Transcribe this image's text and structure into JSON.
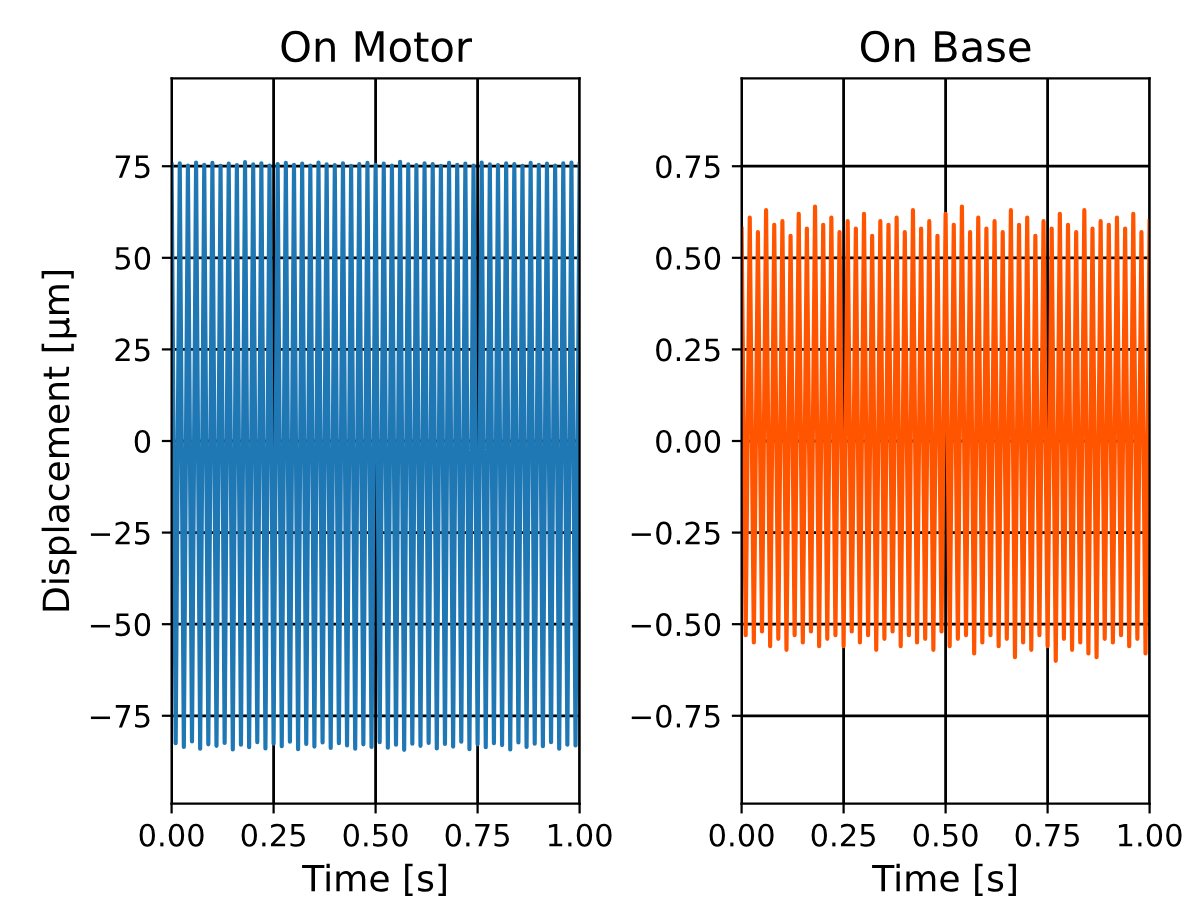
{
  "chart_data": [
    {
      "type": "line",
      "title": "On Motor",
      "xlabel": "Time [s]",
      "ylabel": "Displacement [μm]",
      "xlim": [
        0,
        1
      ],
      "xticks": [
        {
          "value": 0,
          "label": "0.00"
        },
        {
          "value": 0.25,
          "label": "0.25"
        },
        {
          "value": 0.5,
          "label": "0.50"
        },
        {
          "value": 0.75,
          "label": "0.75"
        },
        {
          "value": 1,
          "label": "1.00"
        }
      ],
      "ylim": [
        -99,
        99
      ],
      "yticks": [
        {
          "value": -75,
          "label": "−75"
        },
        {
          "value": -50,
          "label": "−50"
        },
        {
          "value": -25,
          "label": "−25"
        },
        0,
        25,
        50,
        75
      ],
      "grid": true,
      "legend": false,
      "x": [
        0,
        0.01,
        0.02,
        0.03,
        0.04,
        0.05,
        0.06,
        0.07,
        0.08,
        0.09,
        0.1,
        0.11,
        0.12,
        0.13,
        0.14,
        0.15,
        0.16,
        0.17,
        0.18,
        0.19,
        0.2,
        0.21,
        0.22,
        0.23,
        0.24,
        0.25,
        0.26,
        0.27,
        0.28,
        0.29,
        0.3,
        0.31,
        0.32,
        0.33,
        0.34,
        0.35,
        0.36,
        0.37,
        0.38,
        0.39,
        0.4,
        0.41,
        0.42,
        0.43,
        0.44,
        0.45,
        0.46,
        0.47,
        0.48,
        0.49,
        0.5,
        0.51,
        0.52,
        0.53,
        0.54,
        0.55,
        0.56,
        0.57,
        0.58,
        0.59,
        0.6,
        0.61,
        0.62,
        0.63,
        0.64,
        0.65,
        0.66,
        0.67,
        0.68,
        0.69,
        0.7,
        0.71,
        0.72,
        0.73,
        0.74,
        0.75,
        0.76,
        0.77,
        0.78,
        0.79,
        0.8,
        0.81,
        0.82,
        0.83,
        0.84,
        0.85,
        0.86,
        0.87,
        0.88,
        0.89,
        0.9,
        0.91,
        0.92,
        0.93,
        0.94,
        0.95,
        0.96,
        0.97,
        0.98,
        0.99,
        1
      ],
      "series": [
        {
          "color": "#1f77b4",
          "values": [
            75.5,
            -82.5,
            75.8,
            -83.5,
            75.2,
            -82.0,
            76.0,
            -84.0,
            75.4,
            -82.8,
            75.9,
            -83.2,
            75.1,
            -82.4,
            75.7,
            -84.2,
            75.3,
            -82.9,
            76.1,
            -83.6,
            75.5,
            -82.2,
            75.8,
            -83.9,
            75.2,
            -82.6,
            75.6,
            -83.3,
            75.9,
            -82.1,
            75.4,
            -84.1,
            75.7,
            -82.7,
            75.2,
            -83.4,
            76.0,
            -82.3,
            75.5,
            -83.8,
            75.3,
            -82.5,
            75.8,
            -83.1,
            75.1,
            -84.0,
            75.6,
            -82.8,
            75.9,
            -83.5,
            75.4,
            -82.2,
            75.7,
            -83.7,
            75.2,
            -82.9,
            76.2,
            -84.3,
            75.5,
            -82.6,
            75.3,
            -83.2,
            75.8,
            -82.4,
            75.6,
            -83.9,
            75.1,
            -82.7,
            75.9,
            -83.4,
            75.4,
            -82.1,
            75.7,
            -84.1,
            75.2,
            -82.8,
            76.0,
            -83.6,
            75.5,
            -82.5,
            75.3,
            -83.0,
            75.8,
            -84.2,
            75.6,
            -82.3,
            75.1,
            -83.5,
            75.9,
            -82.6,
            75.4,
            -83.3,
            75.7,
            -82.2,
            75.2,
            -84.0,
            75.8,
            -82.9,
            76.0,
            -83.1,
            75.6
          ]
        }
      ]
    },
    {
      "type": "line",
      "title": "On Base",
      "xlabel": "Time [s]",
      "xlim": [
        0,
        1
      ],
      "xticks": [
        {
          "value": 0,
          "label": "0.00"
        },
        {
          "value": 0.25,
          "label": "0.25"
        },
        {
          "value": 0.5,
          "label": "0.50"
        },
        {
          "value": 0.75,
          "label": "0.75"
        },
        {
          "value": 1,
          "label": "1.00"
        }
      ],
      "ylim": [
        -0.99,
        0.99
      ],
      "yticks": [
        {
          "value": -0.75,
          "label": "−0.75"
        },
        {
          "value": -0.5,
          "label": "−0.50"
        },
        {
          "value": -0.25,
          "label": "−0.25"
        },
        {
          "value": 0,
          "label": "0.00"
        },
        {
          "value": 0.25,
          "label": "0.25"
        },
        {
          "value": 0.5,
          "label": "0.50"
        },
        {
          "value": 0.75,
          "label": "0.75"
        }
      ],
      "grid": true,
      "legend": false,
      "x": [
        0,
        0.01,
        0.02,
        0.03,
        0.04,
        0.05,
        0.06,
        0.07,
        0.08,
        0.09,
        0.1,
        0.11,
        0.12,
        0.13,
        0.14,
        0.15,
        0.16,
        0.17,
        0.18,
        0.19,
        0.2,
        0.21,
        0.22,
        0.23,
        0.24,
        0.25,
        0.26,
        0.27,
        0.28,
        0.29,
        0.3,
        0.31,
        0.32,
        0.33,
        0.34,
        0.35,
        0.36,
        0.37,
        0.38,
        0.39,
        0.4,
        0.41,
        0.42,
        0.43,
        0.44,
        0.45,
        0.46,
        0.47,
        0.48,
        0.49,
        0.5,
        0.51,
        0.52,
        0.53,
        0.54,
        0.55,
        0.56,
        0.57,
        0.58,
        0.59,
        0.6,
        0.61,
        0.62,
        0.63,
        0.64,
        0.65,
        0.66,
        0.67,
        0.68,
        0.69,
        0.7,
        0.71,
        0.72,
        0.73,
        0.74,
        0.75,
        0.76,
        0.77,
        0.78,
        0.79,
        0.8,
        0.81,
        0.82,
        0.83,
        0.84,
        0.85,
        0.86,
        0.87,
        0.88,
        0.89,
        0.9,
        0.91,
        0.92,
        0.93,
        0.94,
        0.95,
        0.96,
        0.97,
        0.98,
        0.99,
        1
      ],
      "series": [
        {
          "color": "#ff5500",
          "values": [
            0.58,
            -0.53,
            0.61,
            -0.55,
            0.57,
            -0.52,
            0.63,
            -0.56,
            0.59,
            -0.54,
            0.6,
            -0.57,
            0.56,
            -0.53,
            0.62,
            -0.55,
            0.58,
            -0.52,
            0.64,
            -0.56,
            0.59,
            -0.54,
            0.61,
            -0.53,
            0.57,
            -0.56,
            0.6,
            -0.52,
            0.58,
            -0.55,
            0.62,
            -0.53,
            0.56,
            -0.57,
            0.6,
            -0.54,
            0.59,
            -0.52,
            0.61,
            -0.56,
            0.57,
            -0.53,
            0.63,
            -0.55,
            0.58,
            -0.54,
            0.6,
            -0.57,
            0.56,
            -0.52,
            0.62,
            -0.56,
            0.59,
            -0.54,
            0.64,
            -0.53,
            0.57,
            -0.58,
            0.61,
            -0.55,
            0.58,
            -0.53,
            0.6,
            -0.56,
            0.57,
            -0.54,
            0.63,
            -0.59,
            0.59,
            -0.55,
            0.61,
            -0.57,
            0.56,
            -0.53,
            0.6,
            -0.56,
            0.58,
            -0.6,
            0.62,
            -0.54,
            0.59,
            -0.57,
            0.57,
            -0.55,
            0.63,
            -0.58,
            0.58,
            -0.59,
            0.6,
            -0.54,
            0.59,
            -0.55,
            0.61,
            -0.53,
            0.58,
            -0.56,
            0.62,
            -0.54,
            0.57,
            -0.58,
            0.6
          ]
        }
      ]
    }
  ]
}
